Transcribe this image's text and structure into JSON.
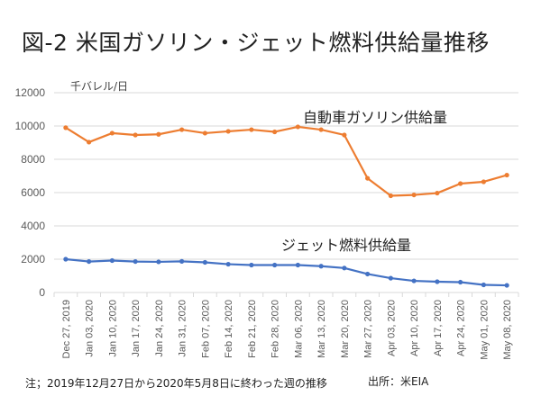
{
  "title": "図-2 米国ガソリン・ジェット燃料供給量推移",
  "note": "注；2019年12月27日から2020年5月8日に終わった週の推移",
  "source": "出所：米EIA",
  "chart_data": {
    "type": "line",
    "title": "図-2 米国ガソリン・ジェット燃料供給量推移",
    "ylabel": "千バレル/日",
    "xlabel": "",
    "ylim": [
      0,
      12000
    ],
    "yticks": [
      0,
      2000,
      4000,
      6000,
      8000,
      10000,
      12000
    ],
    "ytick_labels": [
      "0",
      "2000",
      "4000",
      "6000",
      "8000",
      "10000",
      "12000"
    ],
    "grid": true,
    "categories": [
      "Dec 27, 2019",
      "Jan 03, 2020",
      "Jan 10, 2020",
      "Jan 17, 2020",
      "Jan 24, 2020",
      "Jan 31, 2020",
      "Feb 07, 2020",
      "Feb 14, 2020",
      "Feb 21, 2020",
      "Feb 28, 2020",
      "Mar 06, 2020",
      "Mar 13, 2020",
      "Mar 20, 2020",
      "Mar 27, 2020",
      "Apr 03, 2020",
      "Apr 10, 2020",
      "Apr 17, 2020",
      "Apr 24, 2020",
      "May 01, 2020",
      "May 08, 2020"
    ],
    "series": [
      {
        "name": "自動車ガソリン供給量",
        "color": "#ED7D31",
        "values": [
          9900,
          9030,
          9570,
          9460,
          9500,
          9780,
          9570,
          9680,
          9780,
          9650,
          9950,
          9780,
          9460,
          6860,
          5810,
          5860,
          5970,
          6540,
          6650,
          7050
        ]
      },
      {
        "name": "ジェット燃料供給量",
        "color": "#4472C4",
        "values": [
          2000,
          1860,
          1920,
          1860,
          1840,
          1870,
          1810,
          1700,
          1650,
          1650,
          1650,
          1580,
          1470,
          1110,
          860,
          700,
          650,
          620,
          460,
          430
        ]
      }
    ]
  }
}
